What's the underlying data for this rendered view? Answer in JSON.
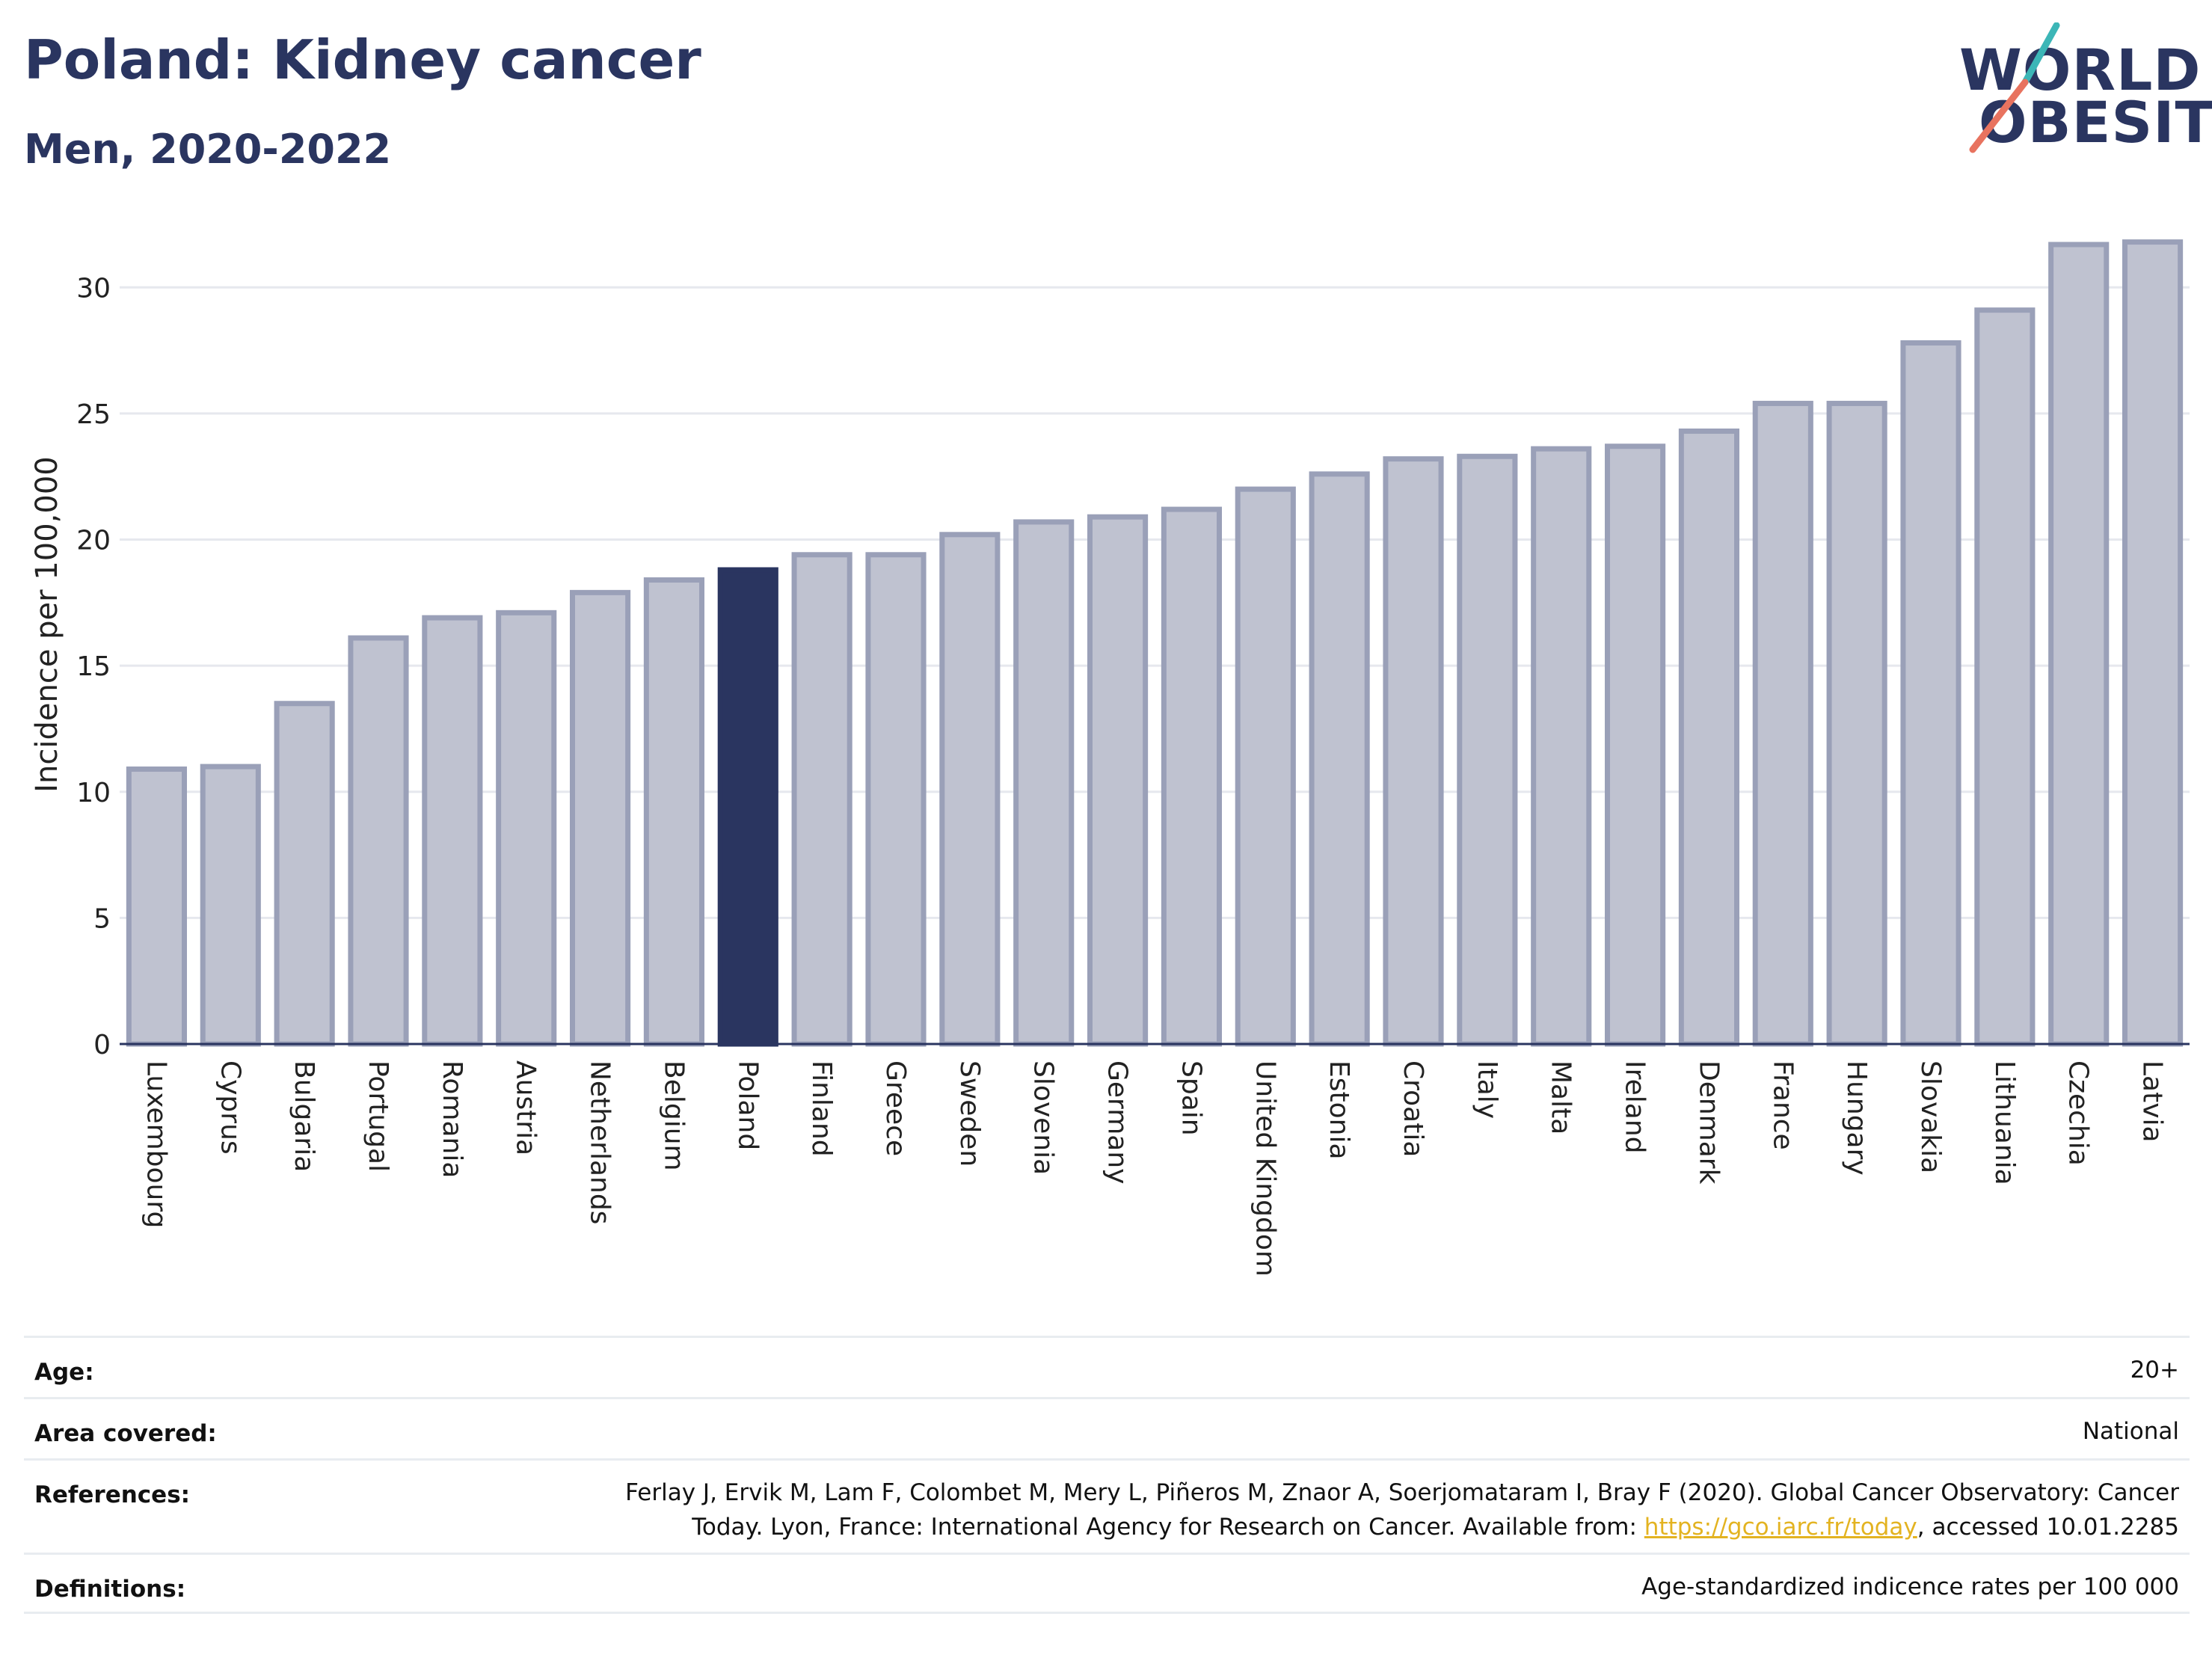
{
  "header": {
    "title": "Poland: Kidney cancer",
    "subtitle": "Men, 2020-2022"
  },
  "logo": {
    "line1": "WORLD",
    "line2": "OBESITY"
  },
  "colors": {
    "highlight": "#2a3560",
    "bar_fill": "#bfc2d0",
    "bar_stroke": "#9aa0b8",
    "logo_teal": "#3cb6b7",
    "logo_coral": "#e8735f",
    "link": "#e3b321"
  },
  "chart_data": {
    "type": "bar",
    "ylabel": "Incidence per 100,000",
    "xlabel": "",
    "ylim": [
      0,
      32.5
    ],
    "yticks": [
      0,
      5,
      10,
      15,
      20,
      25,
      30
    ],
    "grid": true,
    "highlight": "Poland",
    "categories": [
      "Luxembourg",
      "Cyprus",
      "Bulgaria",
      "Portugal",
      "Romania",
      "Austria",
      "Netherlands",
      "Belgium",
      "Poland",
      "Finland",
      "Greece",
      "Sweden",
      "Slovenia",
      "Germany",
      "Spain",
      "United Kingdom",
      "Estonia",
      "Croatia",
      "Italy",
      "Malta",
      "Ireland",
      "Denmark",
      "France",
      "Hungary",
      "Slovakia",
      "Lithuania",
      "Czechia",
      "Latvia"
    ],
    "values": [
      10.9,
      11.0,
      13.5,
      16.1,
      16.9,
      17.1,
      17.9,
      18.4,
      18.8,
      19.4,
      19.4,
      20.2,
      20.7,
      20.9,
      21.2,
      22.0,
      22.6,
      23.2,
      23.3,
      23.6,
      23.7,
      24.3,
      25.4,
      25.4,
      27.8,
      29.1,
      31.7,
      31.8
    ]
  },
  "metadata": {
    "age_label": "Age:",
    "age_value": "20+",
    "area_label": "Area covered:",
    "area_value": "National",
    "references_label": "References:",
    "references_text_1": "Ferlay J, Ervik M, Lam F, Colombet M, Mery L, Piñeros M, Znaor A, Soerjomataram I, Bray F (2020). Global Cancer Observatory: Cancer",
    "references_text_2": "Today. Lyon, France: International Agency for Research on Cancer. Available from: ",
    "references_link": "https://gco.iarc.fr/today",
    "references_text_3": ", accessed 10.01.2285",
    "definitions_label": "Definitions:",
    "definitions_value": "Age-standardized indicence rates per 100 000"
  }
}
